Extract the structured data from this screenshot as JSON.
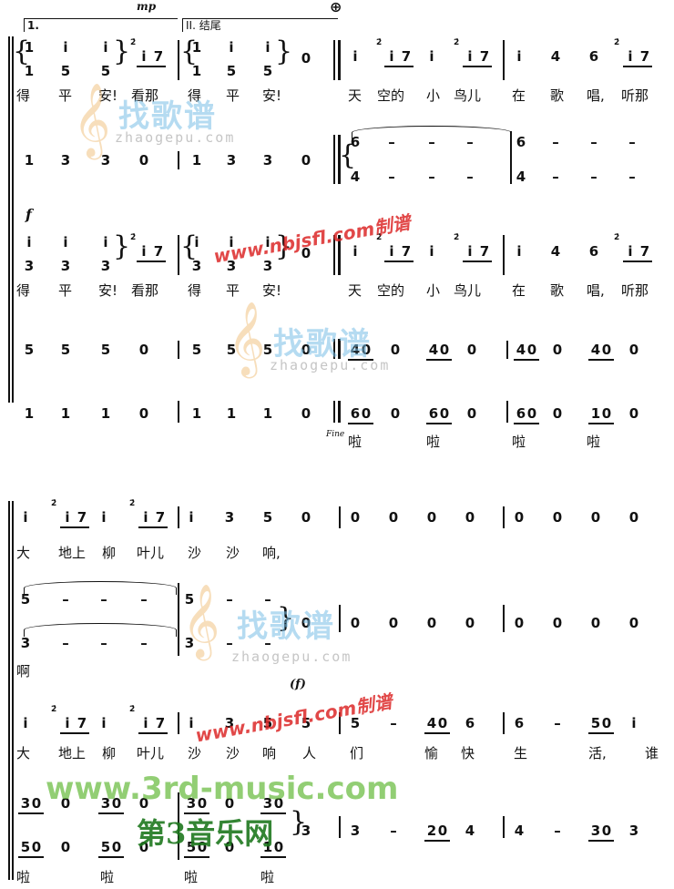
{
  "header": {
    "dynamic_mp": "mp",
    "volta_1": "1.",
    "volta_2": "II. 结尾",
    "coda_sign": "⊕"
  },
  "system1": {
    "dynamic_f": "f",
    "fine_label": "Fine",
    "lyrics_row1": [
      "得",
      "平",
      "安!",
      "看那",
      "得",
      "平",
      "安!",
      "天",
      "空的",
      "小",
      "鸟儿",
      "在",
      "歌",
      "唱,",
      "听那"
    ],
    "lyrics_row2": [
      "得",
      "平",
      "安!",
      "看那",
      "得",
      "平",
      "安!",
      "天",
      "空的",
      "小",
      "鸟儿",
      "在",
      "歌",
      "唱,",
      "听那"
    ],
    "lyrics_la": [
      "啦",
      "啦",
      "啦",
      "啦"
    ]
  },
  "system2": {
    "dynamic_f_paren": "(f)",
    "lyrics_row1": [
      "大",
      "地上",
      "柳",
      "叶儿",
      "沙",
      "沙",
      "响,"
    ],
    "lyrics_ah": "啊",
    "lyrics_row3": [
      "大",
      "地上",
      "柳",
      "叶儿",
      "沙",
      "沙",
      "响",
      "人",
      "们",
      "愉",
      "快",
      "生",
      "活,",
      "谁"
    ],
    "lyrics_la": [
      "啦",
      "啦",
      "啦",
      "啦"
    ]
  },
  "watermarks": {
    "cn_site": "找歌谱",
    "en_site": "zhaogepu.com",
    "url_mark": "www.nbjsfl.com制谱",
    "third_music": "www.3rd-music.com",
    "third_music_cn": "第3音乐网"
  }
}
